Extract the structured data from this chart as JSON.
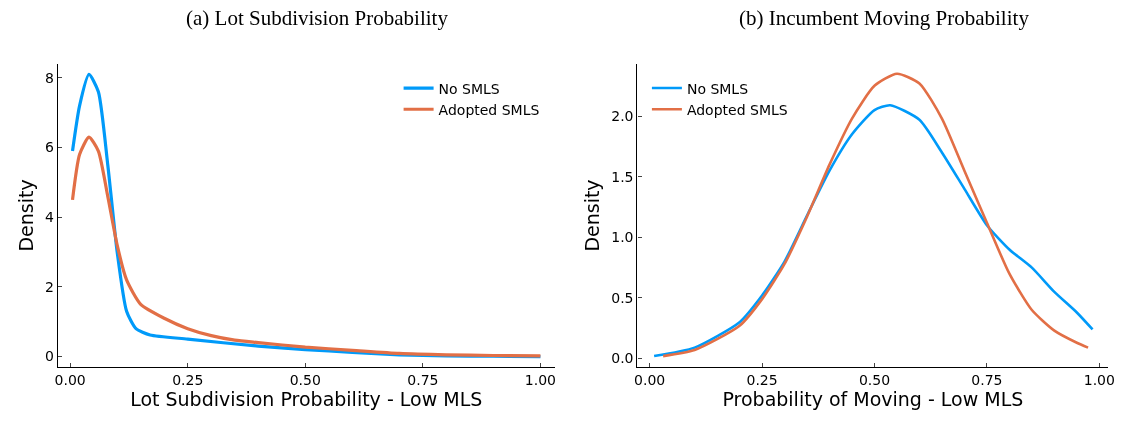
{
  "chart_data": [
    {
      "type": "line",
      "title": "(a) Lot Subdivision Probability",
      "xlabel": "Lot Subdivision Probability - Low MLS",
      "ylabel": "Density",
      "xlim": [
        -0.026,
        1.03
      ],
      "ylim": [
        -0.3,
        8.4
      ],
      "xticks": [
        {
          "value": 0,
          "label": "0.00"
        },
        {
          "value": 0.25,
          "label": "0.25"
        },
        {
          "value": 0.5,
          "label": "0.50"
        },
        {
          "value": 0.75,
          "label": "0.75"
        },
        {
          "value": 1,
          "label": "1.00"
        }
      ],
      "yticks": [
        0,
        2,
        4,
        6,
        8
      ],
      "legend": "top right",
      "series": [
        {
          "name": "No SMLS",
          "color": "#009af9",
          "x": [
            0.005,
            0.02,
            0.04,
            0.06,
            0.08,
            0.1,
            0.12,
            0.14,
            0.17,
            0.25,
            0.4,
            0.5,
            0.6,
            0.7,
            0.8,
            0.9,
            1.0
          ],
          "values": [
            5.9,
            7.2,
            8.1,
            7.6,
            5.5,
            3.0,
            1.3,
            0.8,
            0.62,
            0.5,
            0.3,
            0.2,
            0.12,
            0.05,
            0.02,
            0.01,
            0.0
          ]
        },
        {
          "name": "Adopted SMLS",
          "color": "#e26f46",
          "x": [
            0.005,
            0.02,
            0.04,
            0.06,
            0.08,
            0.1,
            0.12,
            0.15,
            0.2,
            0.25,
            0.3,
            0.35,
            0.4,
            0.5,
            0.6,
            0.7,
            0.8,
            0.9,
            1.0
          ],
          "values": [
            4.5,
            5.8,
            6.3,
            5.9,
            4.6,
            3.2,
            2.2,
            1.5,
            1.1,
            0.8,
            0.6,
            0.47,
            0.4,
            0.27,
            0.18,
            0.09,
            0.05,
            0.03,
            0.02
          ]
        }
      ]
    },
    {
      "type": "line",
      "title": "(b) Incumbent Moving Probability",
      "xlabel": "Probability of Moving - Low MLS",
      "ylabel": "Density",
      "xlim": [
        -0.027,
        1.02
      ],
      "ylim": [
        -0.07,
        2.43
      ],
      "xticks": [
        {
          "value": 0,
          "label": "0.00"
        },
        {
          "value": 0.25,
          "label": "0.25"
        },
        {
          "value": 0.5,
          "label": "0.50"
        },
        {
          "value": 0.75,
          "label": "0.75"
        },
        {
          "value": 1,
          "label": "1.00"
        }
      ],
      "yticks": [
        {
          "value": 0,
          "label": "0.0"
        },
        {
          "value": 0.5,
          "label": "0.5"
        },
        {
          "value": 1,
          "label": "1.0"
        },
        {
          "value": 1.5,
          "label": "1.5"
        },
        {
          "value": 2,
          "label": "2.0"
        }
      ],
      "legend": "top left",
      "series": [
        {
          "name": "No SMLS",
          "color": "#009af9",
          "x": [
            0.01,
            0.1,
            0.2,
            0.25,
            0.3,
            0.35,
            0.4,
            0.45,
            0.5,
            0.535,
            0.6,
            0.65,
            0.7,
            0.75,
            0.8,
            0.85,
            0.9,
            0.95,
            0.985
          ],
          "values": [
            0.02,
            0.09,
            0.3,
            0.52,
            0.8,
            1.18,
            1.55,
            1.85,
            2.05,
            2.09,
            1.97,
            1.7,
            1.4,
            1.1,
            0.9,
            0.75,
            0.55,
            0.38,
            0.24
          ]
        },
        {
          "name": "Adopted SMLS",
          "color": "#e26f46",
          "x": [
            0.03,
            0.1,
            0.2,
            0.25,
            0.3,
            0.35,
            0.4,
            0.45,
            0.5,
            0.55,
            0.6,
            0.65,
            0.7,
            0.75,
            0.8,
            0.85,
            0.9,
            0.95,
            0.975
          ],
          "values": [
            0.02,
            0.07,
            0.27,
            0.49,
            0.78,
            1.17,
            1.6,
            1.98,
            2.25,
            2.35,
            2.27,
            1.98,
            1.55,
            1.12,
            0.7,
            0.4,
            0.23,
            0.13,
            0.09
          ]
        }
      ]
    }
  ]
}
